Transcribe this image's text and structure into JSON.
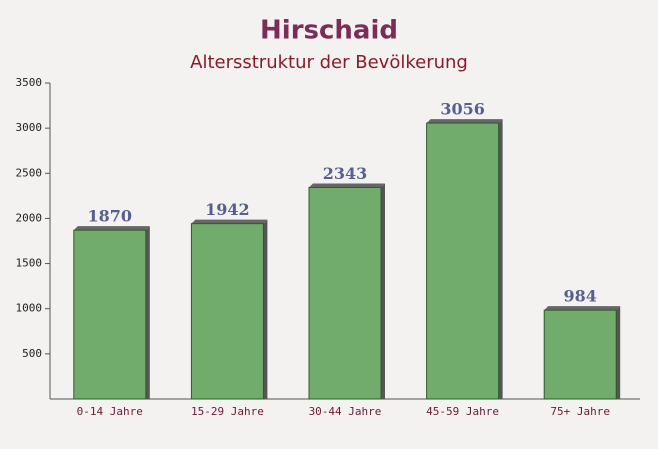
{
  "chart_data": {
    "type": "bar",
    "title": "Hirschaid",
    "subtitle": "Altersstruktur der Bevölkerung",
    "categories": [
      "0-14 Jahre",
      "15-29 Jahre",
      "30-44 Jahre",
      "45-59 Jahre",
      "75+ Jahre"
    ],
    "values": [
      1870,
      1942,
      2343,
      3056,
      984
    ],
    "color": "#6aa865",
    "ylim": [
      0,
      3500
    ],
    "yticks": [
      500,
      1000,
      1500,
      2000,
      2500,
      3000,
      3500
    ]
  }
}
